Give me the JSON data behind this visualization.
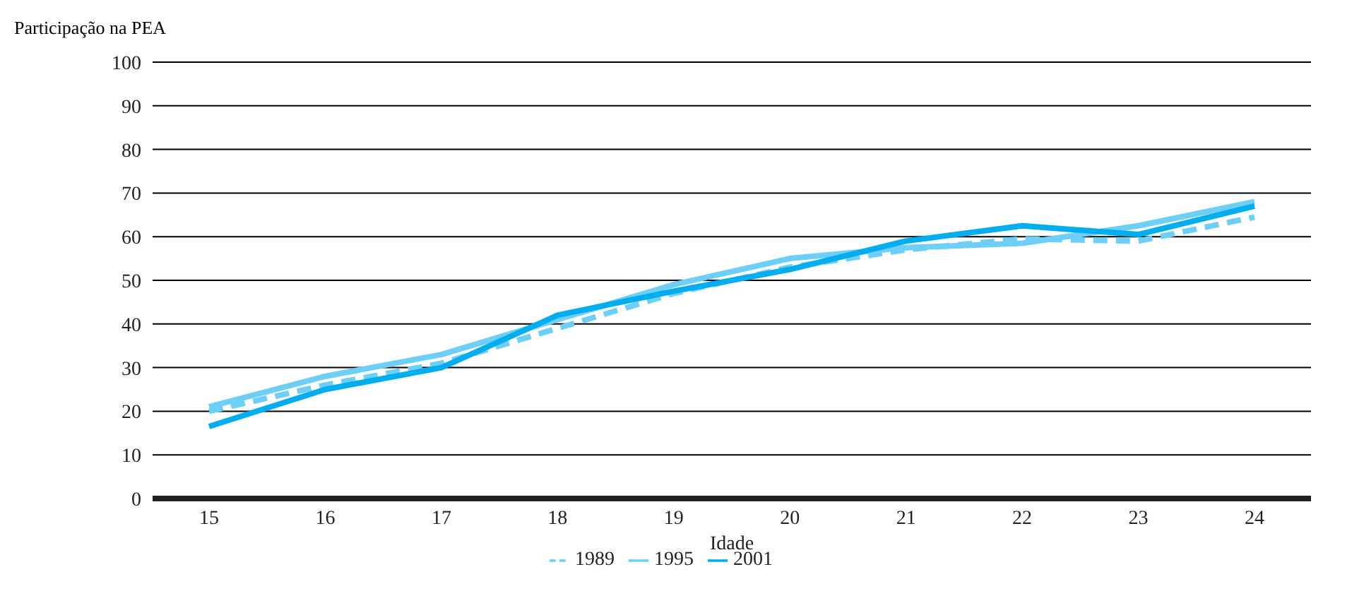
{
  "chart_data": {
    "type": "line",
    "ylabel": "Participação na PEA",
    "xlabel": "Idade",
    "categories": [
      "15",
      "16",
      "17",
      "18",
      "19",
      "20",
      "21",
      "22",
      "23",
      "24"
    ],
    "series": [
      {
        "name": "1989",
        "color": "#6dcff6",
        "line_style": "dashed",
        "values": [
          20,
          26,
          31,
          39,
          47,
          53,
          57,
          59.5,
          59,
          64.5
        ]
      },
      {
        "name": "1995",
        "color": "#6dcff6",
        "line_style": "solid",
        "values": [
          21,
          28,
          33,
          41,
          49,
          55,
          57.5,
          58.5,
          62.5,
          68
        ]
      },
      {
        "name": "2001",
        "color": "#00aeef",
        "line_style": "solid",
        "values": [
          16.5,
          25,
          30,
          42,
          47.5,
          52.5,
          59,
          62.5,
          60.5,
          67
        ]
      }
    ],
    "ylim": [
      0,
      100
    ],
    "yticks": [
      0,
      10,
      20,
      30,
      40,
      50,
      60,
      70,
      80,
      90,
      100
    ],
    "grid": "y",
    "legend": "bottom",
    "marker": "none"
  }
}
